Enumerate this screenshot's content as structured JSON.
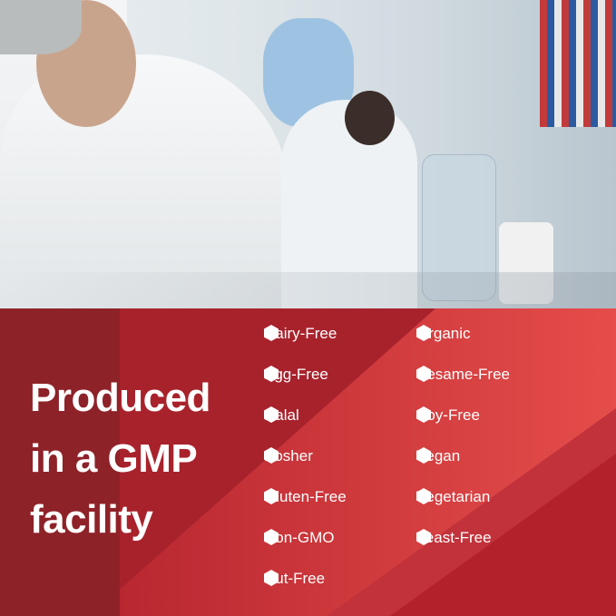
{
  "photo": {
    "subject": "lab-scientists-photo"
  },
  "headline": {
    "lines": [
      "Produced",
      "in a GMP",
      "facility"
    ]
  },
  "features": {
    "icon": "hexagon-bullet-icon",
    "left": [
      "Dairy-Free",
      "Egg-Free",
      "Halal",
      "Kosher",
      "Gluten-Free",
      "Non-GMO",
      "Nut-Free"
    ],
    "right": [
      "Organic",
      "Sesame-Free",
      "Soy-Free",
      "Vegan",
      "Vegetarian",
      "Yeast-Free"
    ]
  },
  "colors": {
    "panel_red": "#c7303a",
    "dark_strip": "#8e2229",
    "light_red": "#e34a4a"
  }
}
